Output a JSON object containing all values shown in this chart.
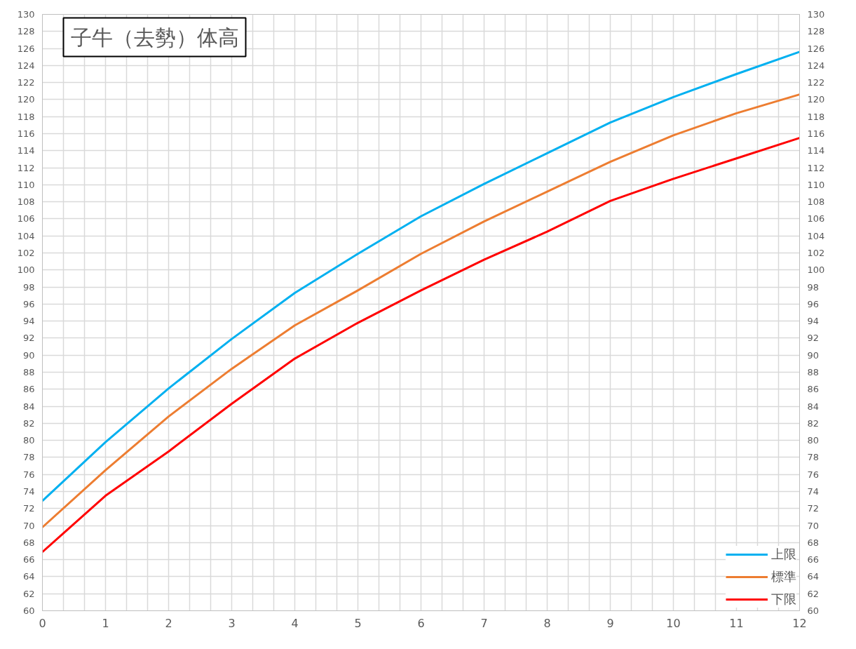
{
  "chart_data": {
    "type": "line",
    "title": "子牛（去勢）体高",
    "x": [
      0,
      1,
      2,
      3,
      4,
      5,
      6,
      7,
      8,
      9,
      10,
      11,
      12
    ],
    "series": [
      {
        "name": "上限",
        "color": "#00b0f0",
        "values": [
          72.9,
          79.8,
          86.1,
          91.9,
          97.3,
          101.9,
          106.3,
          110.1,
          113.7,
          117.3,
          120.3,
          123.0,
          125.6
        ]
      },
      {
        "name": "標準",
        "color": "#ed7d31",
        "values": [
          69.8,
          76.5,
          82.8,
          88.4,
          93.5,
          97.6,
          101.9,
          105.7,
          109.2,
          112.7,
          115.8,
          118.4,
          120.6
        ]
      },
      {
        "name": "下限",
        "color": "#ff0000",
        "values": [
          66.9,
          73.5,
          78.7,
          84.3,
          89.6,
          93.8,
          97.6,
          101.2,
          104.5,
          108.1,
          110.7,
          113.1,
          115.5
        ]
      }
    ],
    "xlim": [
      0,
      12
    ],
    "xticks": [
      0,
      {
        "value": 0.33,
        "label": null
      },
      {
        "value": 0.67,
        "label": null
      },
      1,
      {
        "value": 1.33,
        "label": null
      },
      {
        "value": 1.67,
        "label": null
      },
      2,
      {
        "value": 2.33,
        "label": null
      },
      {
        "value": 2.67,
        "label": null
      },
      3,
      {
        "value": 3.33,
        "label": null
      },
      {
        "value": 3.67,
        "label": null
      },
      4,
      {
        "value": 4.33,
        "label": null
      },
      {
        "value": 4.67,
        "label": null
      },
      5,
      {
        "value": 5.33,
        "label": null
      },
      {
        "value": 5.67,
        "label": null
      },
      6,
      {
        "value": 6.33,
        "label": null
      },
      {
        "value": 6.67,
        "label": null
      },
      7,
      {
        "value": 7.33,
        "label": null
      },
      {
        "value": 7.67,
        "label": null
      },
      8,
      {
        "value": 8.33,
        "label": null
      },
      {
        "value": 8.67,
        "label": null
      },
      9,
      {
        "value": 9.33,
        "label": null
      },
      {
        "value": 9.67,
        "label": null
      },
      10,
      {
        "value": 10.33,
        "label": null
      },
      {
        "value": 10.67,
        "label": null
      },
      11,
      {
        "value": 11.33,
        "label": null
      },
      {
        "value": 11.67,
        "label": null
      },
      12
    ],
    "ylim": [
      60,
      130
    ],
    "yticks": [
      60,
      62,
      64,
      66,
      68,
      70,
      72,
      74,
      76,
      78,
      80,
      82,
      84,
      86,
      88,
      90,
      92,
      94,
      96,
      98,
      100,
      102,
      104,
      106,
      108,
      110,
      112,
      114,
      116,
      118,
      120,
      122,
      124,
      126,
      128,
      130
    ],
    "y2lim": [
      60,
      130
    ],
    "y2ticks": [
      60,
      62,
      64,
      66,
      68,
      70,
      72,
      74,
      76,
      78,
      80,
      82,
      84,
      86,
      88,
      90,
      92,
      94,
      96,
      98,
      100,
      102,
      104,
      106,
      108,
      110,
      112,
      114,
      116,
      118,
      120,
      122,
      124,
      126,
      128,
      130
    ],
    "grid": true,
    "legend": "bottom right",
    "marker": "none",
    "line_style": "solid"
  }
}
